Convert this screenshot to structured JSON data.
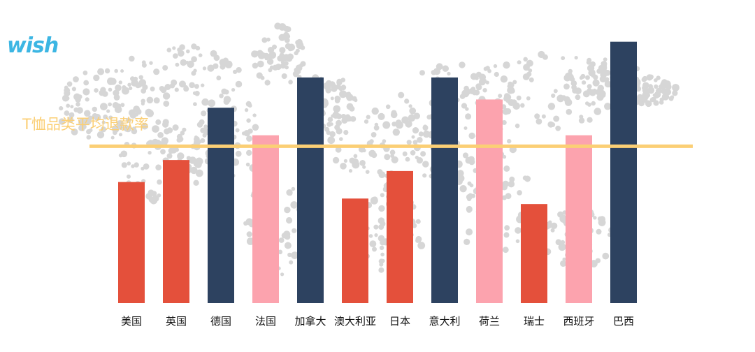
{
  "brand": {
    "logo_text": "wish",
    "logo_color": "#3cb6e3"
  },
  "colors": {
    "red": "#e4503b",
    "pink": "#fca3ae",
    "navy": "#2d4260",
    "reference_line": "#fbcf75",
    "map_dots": "#d6d6d6"
  },
  "chart_data": {
    "type": "bar",
    "title": "",
    "xlabel": "",
    "ylabel": "",
    "categories": [
      "美国",
      "英国",
      "德国",
      "法国",
      "加拿大",
      "澳大利亚",
      "日本",
      "意大利",
      "荷兰",
      "瑞士",
      "西班牙",
      "巴西"
    ],
    "values": [
      44,
      52,
      71,
      61,
      82,
      38,
      48,
      82,
      74,
      36,
      61,
      95
    ],
    "bar_colors": [
      "red",
      "red",
      "navy",
      "pink",
      "navy",
      "red",
      "red",
      "navy",
      "pink",
      "red",
      "pink",
      "navy"
    ],
    "ylim": [
      0,
      100
    ],
    "grid": false,
    "legend": "none",
    "reference_line": {
      "label": "T恤品类平均退款率",
      "value": 57
    }
  }
}
